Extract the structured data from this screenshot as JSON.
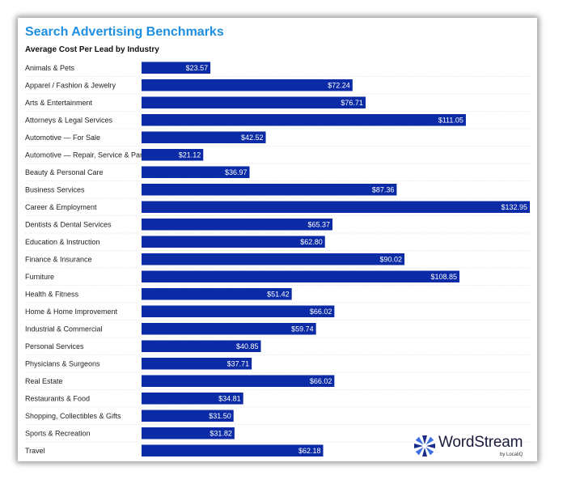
{
  "header": {
    "title": "Search Advertising Benchmarks",
    "subtitle": "Average Cost Per Lead by Industry"
  },
  "brand": {
    "name": "WordStream",
    "tagline": "by LocaliQ",
    "icon": "wordstream-burst-icon",
    "colors": {
      "dark": "#1a2b8a",
      "light": "#3b6fe0"
    }
  },
  "colors": {
    "bar": "#0a2aa6",
    "title": "#1e8fe0",
    "divider": "#d8d8d8"
  },
  "chart_data": {
    "type": "bar",
    "orientation": "horizontal",
    "title": "Search Advertising Benchmarks",
    "subtitle": "Average Cost Per Lead by Industry",
    "xlabel": "",
    "ylabel": "",
    "xlim": [
      0,
      132.95
    ],
    "grid": false,
    "legend": "none",
    "categories": [
      "Animals & Pets",
      "Apparel / Fashion & Jewelry",
      "Arts & Entertainment",
      "Attorneys & Legal Services",
      "Automotive — For Sale",
      "Automotive — Repair, Service & Parts",
      "Beauty & Personal Care",
      "Business Services",
      "Career & Employment",
      "Dentists & Dental Services",
      "Education & Instruction",
      "Finance & Insurance",
      "Furniture",
      "Health & Fitness",
      "Home & Home Improvement",
      "Industrial & Commercial",
      "Personal Services",
      "Physicians & Surgeons",
      "Real Estate",
      "Restaurants & Food",
      "Shopping, Collectibles & Gifts",
      "Sports & Recreation",
      "Travel"
    ],
    "values": [
      23.57,
      72.24,
      76.71,
      111.05,
      42.52,
      21.12,
      36.97,
      87.36,
      132.95,
      65.37,
      62.8,
      90.02,
      108.85,
      51.42,
      66.02,
      59.74,
      40.85,
      37.71,
      66.02,
      34.81,
      31.5,
      31.82,
      62.18
    ],
    "labels": [
      "$23.57",
      "$72.24",
      "$76.71",
      "$111.05",
      "$42.52",
      "$21.12",
      "$36.97",
      "$87.36",
      "$132.95",
      "$65.37",
      "$62.80",
      "$90.02",
      "$108.85",
      "$51.42",
      "$66.02",
      "$59.74",
      "$40.85",
      "$37.71",
      "$66.02",
      "$34.81",
      "$31.50",
      "$31.82",
      "$62.18"
    ]
  }
}
